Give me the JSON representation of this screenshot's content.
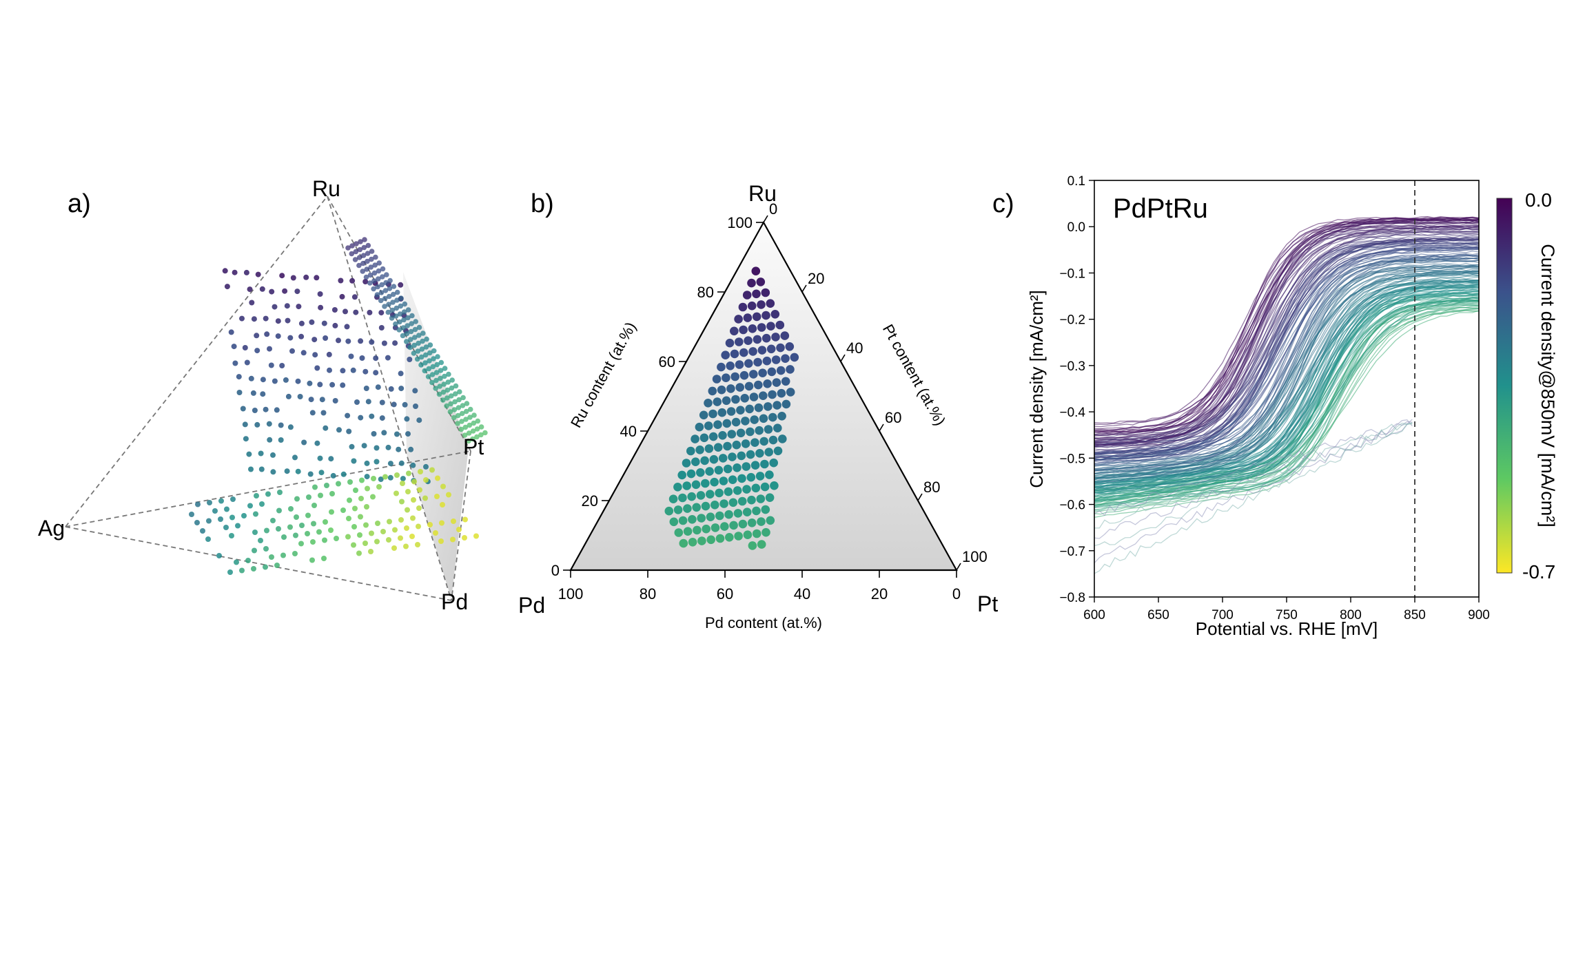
{
  "figure": {
    "panel_labels": [
      "a)",
      "b)",
      "c)"
    ]
  },
  "panel_a": {
    "vertices": {
      "top": "Ru",
      "left": "Ag",
      "right": "Pt",
      "bottom": "Pd"
    }
  },
  "panel_b": {
    "vertices": {
      "top": "Ru",
      "left": "Pd",
      "right": "Pt"
    },
    "axis_titles": {
      "left": "Ru content (at.%)",
      "right": "Pt content (at.%)",
      "bottom": "Pd content (at.%)"
    },
    "ticks": [
      "0",
      "20",
      "40",
      "60",
      "80",
      "100"
    ]
  },
  "panel_c": {
    "title": "PdPtRu",
    "colorbar": {
      "label": "Current density@850mV [mA/cm²]",
      "max_label": "0.0",
      "min_label": "-0.7"
    },
    "xtick_labels": [
      "600",
      "650",
      "700",
      "750",
      "800",
      "850",
      "900"
    ],
    "ytick_labels": [
      "0.1",
      "0.0",
      "−0.1",
      "−0.2",
      "−0.3",
      "−0.4",
      "−0.5",
      "−0.6",
      "−0.7",
      "−0.8"
    ]
  },
  "chart_data": [
    {
      "type": "scatter",
      "panel": "a",
      "kind": "quaternary composition tetrahedron",
      "vertices": [
        "Ru",
        "Ag",
        "Pt",
        "Pd"
      ],
      "colormap": "viridis",
      "cmap_range": [
        -0.7,
        0.0
      ],
      "note": "3D scatter of composition points colored by current density"
    },
    {
      "type": "scatter",
      "panel": "b",
      "kind": "ternary",
      "vertices": [
        "Ru",
        "Pd",
        "Pt"
      ],
      "axes": {
        "ru": {
          "label": "Ru content (at.%)",
          "range": [
            0,
            100
          ]
        },
        "pt": {
          "label": "Pt content (at.%)",
          "range": [
            0,
            100
          ]
        },
        "pd": {
          "label": "Pd content (at.%)",
          "range": [
            0,
            100
          ]
        }
      },
      "colormap": "viridis",
      "cmap_range": [
        -0.7,
        0.0
      ],
      "grid": false
    },
    {
      "type": "line",
      "panel": "c",
      "title": "PdPtRu",
      "xlabel": "Potential vs. RHE [mV]",
      "ylabel": "Current density [mA/cm²]",
      "xlim": [
        600,
        900
      ],
      "ylim": [
        -0.8,
        0.1
      ],
      "xticks": [
        600,
        650,
        700,
        750,
        800,
        850,
        900
      ],
      "yticks": [
        0.1,
        0.0,
        -0.1,
        -0.2,
        -0.3,
        -0.4,
        -0.5,
        -0.6,
        -0.7,
        -0.8
      ],
      "vline_x": 850,
      "colormap": "viridis",
      "colorbar_range": [
        -0.7,
        0.0
      ],
      "grid": false,
      "series_description": "Roughly 200 polarization curves colored by current density at 850 mV; near-constant plateau from -0.45 to -0.6 at low potential, rising to about 0.0 at 900 mV"
    }
  ]
}
